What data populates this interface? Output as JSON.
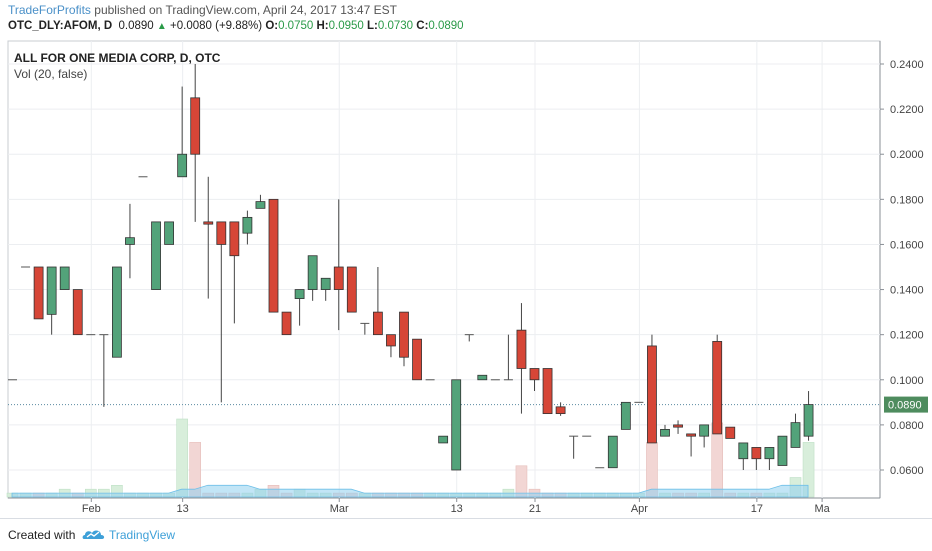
{
  "header": {
    "author": "TradeForProfits",
    "published_text": "published on TradingView.com, April 24, 2017 13:47 EST",
    "symbol_line": "OTC_DLY:AFOM, D",
    "last": "0.0890",
    "change": "+0.0080 (+9.88%)",
    "o_label": "O:",
    "o_value": "0.0750",
    "h_label": "H:",
    "h_value": "0.0950",
    "l_label": "L:",
    "l_value": "0.0730",
    "c_label": "C:",
    "c_value": "0.0890"
  },
  "footer": {
    "created_with": "Created with",
    "brand": "TradingView"
  },
  "chart_data": {
    "type": "candlestick",
    "title": "ALL FOR ONE MEDIA CORP, D, OTC",
    "volume_label": "Vol (20, false)",
    "last_price_label": "0.0890",
    "ylim": [
      0.0445,
      0.2445
    ],
    "y_ticks": [
      0.06,
      0.08,
      0.1,
      0.12,
      0.14,
      0.16,
      0.18,
      0.2,
      0.22,
      0.24
    ],
    "y_tick_labels": [
      "0.0600",
      "0.0800",
      "0.1000",
      "0.1200",
      "0.1400",
      "0.1600",
      "0.1800",
      "0.2000",
      "0.2200",
      "0.2400"
    ],
    "x_tick_labels": [
      {
        "i": 6,
        "label": "Feb"
      },
      {
        "i": 13,
        "label": "13"
      },
      {
        "i": 25,
        "label": "Mar"
      },
      {
        "i": 34,
        "label": "13"
      },
      {
        "i": 40,
        "label": "21"
      },
      {
        "i": 48,
        "label": "Apr"
      },
      {
        "i": 57,
        "label": "17"
      },
      {
        "i": 62,
        "label": "Ma"
      }
    ],
    "colors": {
      "up": "#53a37a",
      "down": "#d64637",
      "volume_up": "#d8eedb",
      "volume_down": "#f2d6d4",
      "ma": "#8fd0ee",
      "price_line": "#5a8aa0"
    },
    "ohlc": [
      {
        "o": 0.1,
        "h": 0.1,
        "l": 0.1,
        "c": 0.1
      },
      {
        "o": 0.15,
        "h": 0.15,
        "l": 0.15,
        "c": 0.15
      },
      {
        "o": 0.15,
        "h": 0.15,
        "l": 0.127,
        "c": 0.127
      },
      {
        "o": 0.129,
        "h": 0.15,
        "l": 0.12,
        "c": 0.15
      },
      {
        "o": 0.14,
        "h": 0.15,
        "l": 0.14,
        "c": 0.15
      },
      {
        "o": 0.14,
        "h": 0.14,
        "l": 0.12,
        "c": 0.12
      },
      {
        "o": 0.12,
        "h": 0.12,
        "l": 0.12,
        "c": 0.12
      },
      {
        "o": 0.12,
        "h": 0.12,
        "l": 0.088,
        "c": 0.12
      },
      {
        "o": 0.11,
        "h": 0.15,
        "l": 0.11,
        "c": 0.15
      },
      {
        "o": 0.16,
        "h": 0.178,
        "l": 0.145,
        "c": 0.163
      },
      {
        "o": 0.19,
        "h": 0.19,
        "l": 0.19,
        "c": 0.19
      },
      {
        "o": 0.14,
        "h": 0.17,
        "l": 0.14,
        "c": 0.17
      },
      {
        "o": 0.16,
        "h": 0.17,
        "l": 0.16,
        "c": 0.17
      },
      {
        "o": 0.19,
        "h": 0.23,
        "l": 0.19,
        "c": 0.2
      },
      {
        "o": 0.225,
        "h": 0.24,
        "l": 0.17,
        "c": 0.2
      },
      {
        "o": 0.17,
        "h": 0.19,
        "l": 0.136,
        "c": 0.169
      },
      {
        "o": 0.17,
        "h": 0.17,
        "l": 0.09,
        "c": 0.16
      },
      {
        "o": 0.17,
        "h": 0.17,
        "l": 0.125,
        "c": 0.155
      },
      {
        "o": 0.165,
        "h": 0.175,
        "l": 0.16,
        "c": 0.172
      },
      {
        "o": 0.176,
        "h": 0.182,
        "l": 0.176,
        "c": 0.179
      },
      {
        "o": 0.18,
        "h": 0.18,
        "l": 0.13,
        "c": 0.13
      },
      {
        "o": 0.13,
        "h": 0.13,
        "l": 0.12,
        "c": 0.12
      },
      {
        "o": 0.136,
        "h": 0.14,
        "l": 0.124,
        "c": 0.14
      },
      {
        "o": 0.14,
        "h": 0.155,
        "l": 0.135,
        "c": 0.155
      },
      {
        "o": 0.14,
        "h": 0.145,
        "l": 0.135,
        "c": 0.145
      },
      {
        "o": 0.15,
        "h": 0.18,
        "l": 0.122,
        "c": 0.14
      },
      {
        "o": 0.15,
        "h": 0.15,
        "l": 0.13,
        "c": 0.13
      },
      {
        "o": 0.125,
        "h": 0.125,
        "l": 0.12,
        "c": 0.125
      },
      {
        "o": 0.13,
        "h": 0.15,
        "l": 0.12,
        "c": 0.12
      },
      {
        "o": 0.12,
        "h": 0.12,
        "l": 0.11,
        "c": 0.115
      },
      {
        "o": 0.13,
        "h": 0.13,
        "l": 0.106,
        "c": 0.11
      },
      {
        "o": 0.118,
        "h": 0.118,
        "l": 0.1,
        "c": 0.1
      },
      {
        "o": 0.1,
        "h": 0.1,
        "l": 0.1,
        "c": 0.1
      },
      {
        "o": 0.072,
        "h": 0.075,
        "l": 0.072,
        "c": 0.075
      },
      {
        "o": 0.06,
        "h": 0.1,
        "l": 0.06,
        "c": 0.1
      },
      {
        "o": 0.12,
        "h": 0.12,
        "l": 0.117,
        "c": 0.12
      },
      {
        "o": 0.1,
        "h": 0.102,
        "l": 0.1,
        "c": 0.102
      },
      {
        "o": 0.1,
        "h": 0.1,
        "l": 0.1,
        "c": 0.1
      },
      {
        "o": 0.1,
        "h": 0.12,
        "l": 0.1,
        "c": 0.1
      },
      {
        "o": 0.122,
        "h": 0.134,
        "l": 0.085,
        "c": 0.105
      },
      {
        "o": 0.105,
        "h": 0.105,
        "l": 0.095,
        "c": 0.1
      },
      {
        "o": 0.105,
        "h": 0.105,
        "l": 0.085,
        "c": 0.085
      },
      {
        "o": 0.088,
        "h": 0.09,
        "l": 0.084,
        "c": 0.085
      },
      {
        "o": 0.075,
        "h": 0.075,
        "l": 0.065,
        "c": 0.075
      },
      {
        "o": 0.075,
        "h": 0.075,
        "l": 0.075,
        "c": 0.075
      },
      {
        "o": 0.061,
        "h": 0.061,
        "l": 0.061,
        "c": 0.061
      },
      {
        "o": 0.061,
        "h": 0.075,
        "l": 0.061,
        "c": 0.075
      },
      {
        "o": 0.078,
        "h": 0.09,
        "l": 0.078,
        "c": 0.09
      },
      {
        "o": 0.09,
        "h": 0.09,
        "l": 0.09,
        "c": 0.09
      },
      {
        "o": 0.115,
        "h": 0.12,
        "l": 0.072,
        "c": 0.072
      },
      {
        "o": 0.075,
        "h": 0.08,
        "l": 0.075,
        "c": 0.078
      },
      {
        "o": 0.08,
        "h": 0.082,
        "l": 0.076,
        "c": 0.079
      },
      {
        "o": 0.076,
        "h": 0.076,
        "l": 0.066,
        "c": 0.075
      },
      {
        "o": 0.075,
        "h": 0.08,
        "l": 0.07,
        "c": 0.08
      },
      {
        "o": 0.117,
        "h": 0.12,
        "l": 0.076,
        "c": 0.076
      },
      {
        "o": 0.079,
        "h": 0.079,
        "l": 0.074,
        "c": 0.074
      },
      {
        "o": 0.065,
        "h": 0.072,
        "l": 0.06,
        "c": 0.072
      },
      {
        "o": 0.07,
        "h": 0.07,
        "l": 0.06,
        "c": 0.065
      },
      {
        "o": 0.065,
        "h": 0.07,
        "l": 0.06,
        "c": 0.07
      },
      {
        "o": 0.062,
        "h": 0.075,
        "l": 0.062,
        "c": 0.075
      },
      {
        "o": 0.07,
        "h": 0.085,
        "l": 0.07,
        "c": 0.081
      },
      {
        "o": 0.075,
        "h": 0.095,
        "l": 0.073,
        "c": 0.089
      }
    ],
    "volume": [
      1,
      1,
      1,
      1,
      2,
      1,
      2,
      2,
      3,
      1,
      1,
      1,
      1,
      20,
      14,
      1,
      1,
      1,
      1,
      2,
      3,
      1,
      2,
      1,
      1,
      1,
      1,
      1,
      1,
      1,
      1,
      1,
      1,
      1,
      1,
      1,
      1,
      1,
      2,
      8,
      2,
      1,
      1,
      1,
      1,
      1,
      1,
      1,
      1,
      14,
      1,
      1,
      1,
      1,
      19,
      1,
      1,
      1,
      1,
      1,
      5,
      14
    ],
    "volume_ma": [
      1,
      1,
      1,
      1,
      1,
      1,
      1,
      1,
      1,
      1,
      1,
      1,
      1,
      2,
      2,
      3,
      3,
      3,
      3,
      2,
      2,
      2,
      2,
      2,
      2,
      2,
      2,
      1,
      1,
      1,
      1,
      1,
      1,
      1,
      1,
      1,
      1,
      1,
      1,
      1,
      1,
      1,
      1,
      1,
      1,
      1,
      1,
      1,
      1,
      2,
      2,
      2,
      2,
      2,
      2,
      2,
      2,
      2,
      2,
      3,
      3,
      3
    ]
  }
}
